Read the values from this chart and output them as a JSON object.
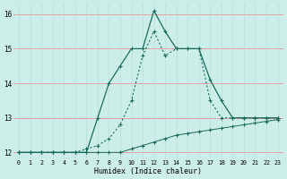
{
  "background_color": "#cceee8",
  "grid_color_h": "#e8a0a0",
  "grid_color_v": "#b8ddd8",
  "line_color": "#1a6b5a",
  "xlabel": "Humidex (Indice chaleur)",
  "xlim": [
    -0.5,
    23.5
  ],
  "ylim": [
    11.8,
    16.3
  ],
  "yticks": [
    12,
    13,
    14,
    15,
    16
  ],
  "xticks": [
    0,
    1,
    2,
    3,
    4,
    5,
    6,
    7,
    8,
    9,
    10,
    11,
    12,
    13,
    14,
    15,
    16,
    17,
    18,
    19,
    20,
    21,
    22,
    23
  ],
  "series_dotted_x": [
    0,
    1,
    2,
    3,
    4,
    5,
    6,
    7,
    8,
    9,
    10,
    11,
    12,
    13,
    14,
    15,
    16,
    17,
    18,
    19,
    20,
    21,
    22,
    23
  ],
  "series_dotted_y": [
    12,
    12,
    12,
    12,
    12,
    12,
    12.1,
    12.2,
    12.4,
    12.8,
    13.5,
    14.8,
    15.5,
    14.8,
    15.0,
    15.0,
    15.0,
    13.5,
    13.0,
    13.0,
    13.0,
    13.0,
    13.0,
    13.0
  ],
  "series_solid_x": [
    0,
    1,
    2,
    3,
    4,
    5,
    6,
    7,
    8,
    9,
    10,
    11,
    12,
    13,
    14,
    15,
    16,
    17,
    18,
    19,
    20,
    21,
    22,
    23
  ],
  "series_solid_y": [
    12,
    12,
    12,
    12,
    12,
    12,
    12,
    13.0,
    14.0,
    14.5,
    15.0,
    15.0,
    16.1,
    15.5,
    15.0,
    15.0,
    15.0,
    14.1,
    13.5,
    13.0,
    13.0,
    13.0,
    13.0,
    13.0
  ],
  "series_flat_x": [
    0,
    1,
    2,
    3,
    4,
    5,
    6,
    7,
    8,
    9,
    10,
    11,
    12,
    13,
    14,
    15,
    16,
    17,
    18,
    19,
    20,
    21,
    22,
    23
  ],
  "series_flat_y": [
    12,
    12,
    12,
    12,
    12,
    12,
    12,
    12,
    12,
    12,
    12.1,
    12.2,
    12.3,
    12.4,
    12.5,
    12.55,
    12.6,
    12.65,
    12.7,
    12.75,
    12.8,
    12.85,
    12.9,
    12.95
  ]
}
